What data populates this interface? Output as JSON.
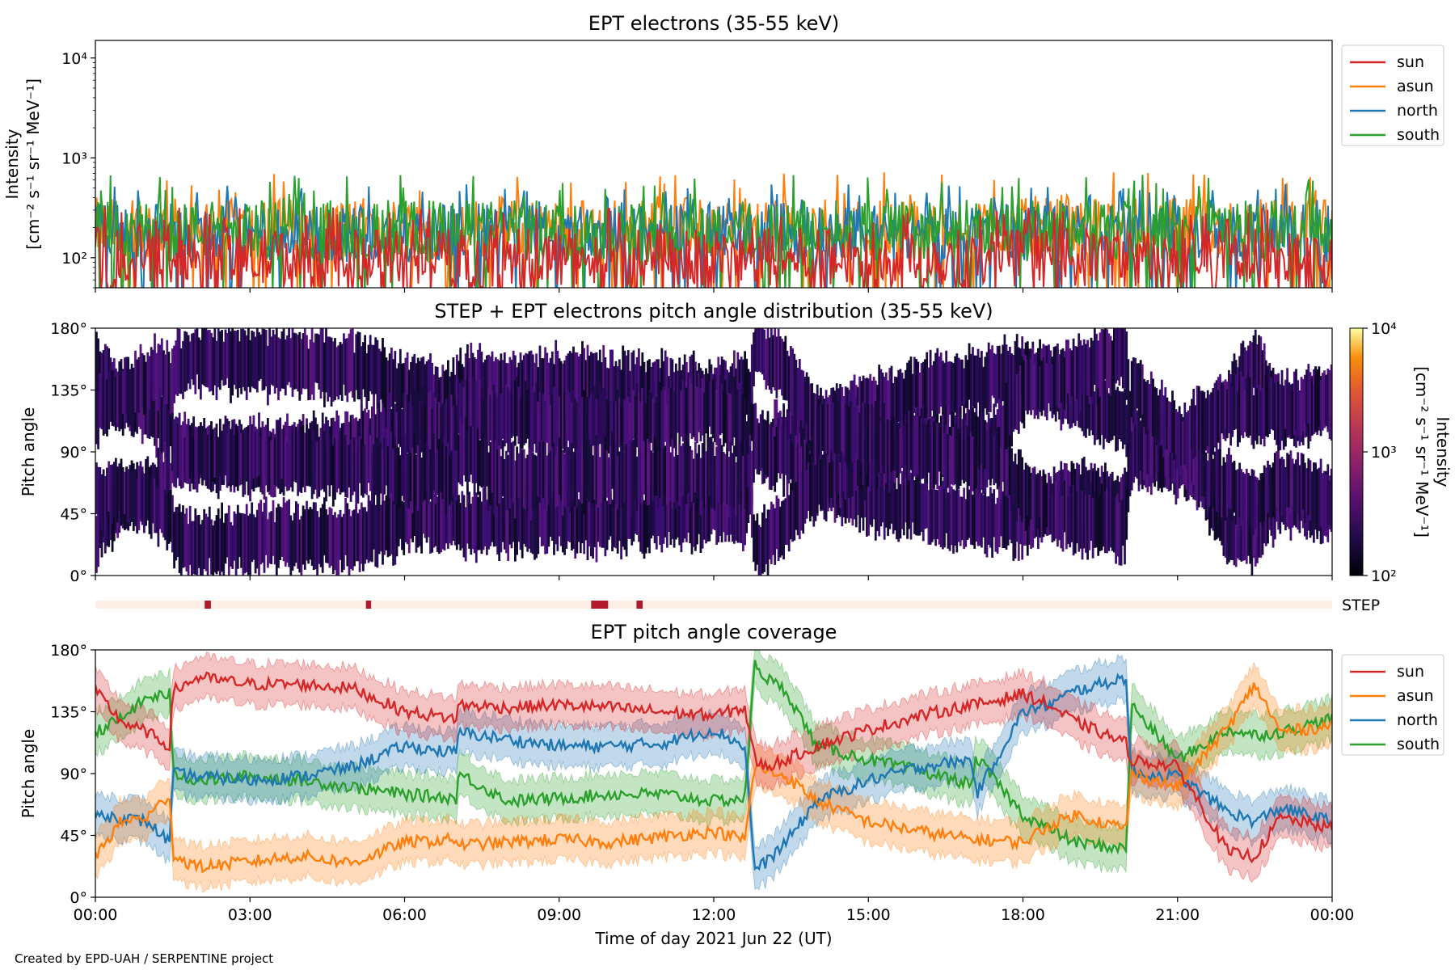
{
  "footer": "Created by EPD-UAH / SERPENTINE project",
  "colors": {
    "sun": "#d62728",
    "asun": "#ff7f0e",
    "north": "#1f77b4",
    "south": "#2ca02c",
    "step_band": "#fdeee6",
    "step_mark": "#b2182b"
  },
  "chart_data": [
    {
      "id": "intensity",
      "type": "line",
      "title": "EPT electrons (35-55 keV)",
      "ylabel_line1": "Intensity",
      "ylabel_line2": "[cm⁻² s⁻¹ sr⁻¹ MeV⁻¹]",
      "yscale": "log",
      "ylim": [
        50,
        15000
      ],
      "yticks": [
        {
          "value": 100,
          "label": "10²"
        },
        {
          "value": 1000,
          "label": "10³"
        },
        {
          "value": 10000,
          "label": "10⁴"
        }
      ],
      "legend_placement": "outside-right-top",
      "series": [
        {
          "name": "sun",
          "color": "#d62728",
          "level": [
            50,
            200
          ],
          "peaks": 320
        },
        {
          "name": "asun",
          "color": "#ff7f0e",
          "level": [
            100,
            400
          ],
          "peaks": 720
        },
        {
          "name": "north",
          "color": "#1f77b4",
          "level": [
            90,
            350
          ],
          "peaks": 560
        },
        {
          "name": "south",
          "color": "#2ca02c",
          "level": [
            90,
            380
          ],
          "peaks": 680
        }
      ]
    },
    {
      "id": "pad",
      "type": "heatmap",
      "title": "STEP + EPT electrons pitch angle distribution (35-55 keV)",
      "ylabel": "Pitch angle",
      "ylim": [
        0,
        180
      ],
      "yticks": [
        "0°",
        "45°",
        "90°",
        "135°",
        "180°"
      ],
      "colorbar": {
        "label_line1": "Intensity",
        "label_line2": "[cm⁻² s⁻¹ sr⁻¹ MeV⁻¹]",
        "scale": "log",
        "range": [
          100,
          10000
        ],
        "ticks": [
          "10²",
          "10³",
          "10⁴"
        ],
        "colormap": "inferno"
      },
      "approx_intensity": [
        100,
        300
      ]
    },
    {
      "id": "step",
      "type": "table",
      "label": "STEP",
      "x_unit": "hours",
      "marks": [
        [
          2.12,
          2.24
        ],
        [
          5.25,
          5.35
        ],
        [
          9.62,
          9.95
        ],
        [
          10.5,
          10.62
        ]
      ]
    },
    {
      "id": "coverage",
      "type": "line",
      "title": "EPT pitch angle coverage",
      "ylabel": "Pitch angle",
      "xlabel": "Time of day 2021 Jun 22 (UT)",
      "ylim": [
        0,
        180
      ],
      "yticks": [
        "0°",
        "45°",
        "90°",
        "135°",
        "180°"
      ],
      "xlim_hours": [
        0,
        24
      ],
      "xticks": [
        "00:00",
        "03:00",
        "06:00",
        "09:00",
        "12:00",
        "15:00",
        "18:00",
        "21:00",
        "00:00"
      ],
      "legend_placement": "outside-right-top",
      "x_hours": [
        0,
        0.5,
        1.0,
        1.45,
        1.5,
        2,
        3,
        4,
        5,
        6,
        7,
        7.05,
        8,
        9,
        10,
        11,
        12,
        12.6,
        12.8,
        13,
        13.4,
        14,
        15,
        16,
        17,
        17.1,
        18,
        18.5,
        19,
        20,
        20.1,
        21,
        22,
        22.5,
        23,
        24
      ],
      "band_halfwidth_deg": 15,
      "series": [
        {
          "name": "sun",
          "color": "#d62728",
          "values": [
            150,
            128,
            120,
            110,
            150,
            160,
            155,
            155,
            152,
            135,
            130,
            140,
            138,
            140,
            138,
            135,
            132,
            138,
            100,
            95,
            100,
            110,
            122,
            132,
            140,
            140,
            148,
            140,
            128,
            112,
            100,
            95,
            32,
            30,
            58,
            50
          ]
        },
        {
          "name": "asun",
          "color": "#ff7f0e",
          "values": [
            30,
            55,
            58,
            75,
            30,
            22,
            26,
            30,
            25,
            40,
            42,
            38,
            40,
            42,
            40,
            44,
            48,
            42,
            95,
            92,
            88,
            70,
            55,
            48,
            42,
            42,
            40,
            52,
            60,
            50,
            90,
            80,
            125,
            155,
            120,
            125
          ]
        },
        {
          "name": "north",
          "color": "#1f77b4",
          "values": [
            60,
            58,
            55,
            40,
            90,
            88,
            85,
            88,
            95,
            110,
            105,
            120,
            115,
            110,
            110,
            112,
            122,
            110,
            20,
            25,
            40,
            70,
            85,
            95,
            100,
            75,
            135,
            140,
            150,
            160,
            90,
            88,
            62,
            55,
            65,
            55
          ]
        },
        {
          "name": "south",
          "color": "#2ca02c",
          "values": [
            120,
            130,
            145,
            148,
            90,
            85,
            88,
            85,
            80,
            75,
            72,
            90,
            70,
            72,
            75,
            75,
            70,
            72,
            170,
            160,
            150,
            110,
            100,
            92,
            82,
            102,
            60,
            50,
            40,
            35,
            140,
            100,
            122,
            118,
            120,
            130
          ]
        }
      ]
    }
  ]
}
